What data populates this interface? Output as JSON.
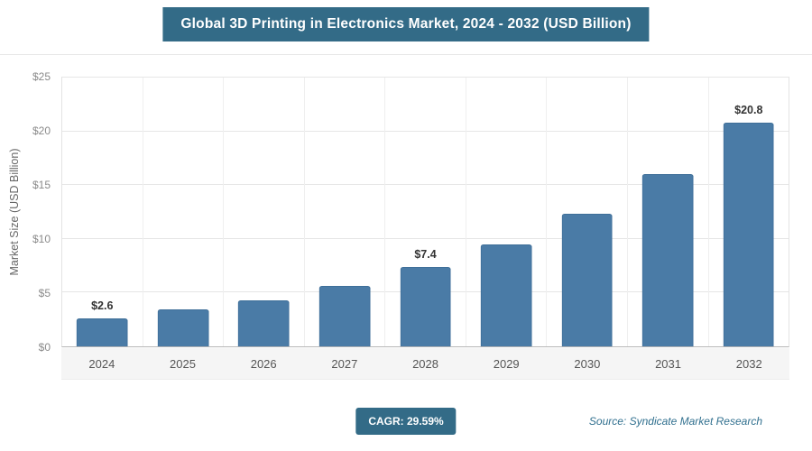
{
  "page": {
    "title": "Global 3D Printing in Electronics Market, 2024 - 2032 (USD Billion)",
    "cagr_badge": "CAGR: 29.59%",
    "source": "Source: Syndicate Market Research"
  },
  "chart_data": {
    "type": "bar",
    "title": "Global 3D Printing in Electronics Market, 2024 - 2032 (USD Billion)",
    "xlabel": "",
    "ylabel": "Market Size (USD Billion)",
    "ylim": [
      0,
      25
    ],
    "ytick_values": [
      0,
      5,
      10,
      15,
      20,
      25
    ],
    "ytick_labels": [
      "$0",
      "$5",
      "$10",
      "$15",
      "$20",
      "$25"
    ],
    "categories": [
      "2024",
      "2025",
      "2026",
      "2027",
      "2028",
      "2029",
      "2030",
      "2031",
      "2032"
    ],
    "values": [
      2.6,
      3.4,
      4.3,
      5.6,
      7.4,
      9.5,
      12.3,
      16.0,
      20.8
    ],
    "data_labels": {
      "2024": "$2.6",
      "2028": "$7.4",
      "2032": "$20.8"
    },
    "bar_color": "#4a7ba6",
    "grid": true,
    "legend": false,
    "cagr": "29.59%"
  }
}
